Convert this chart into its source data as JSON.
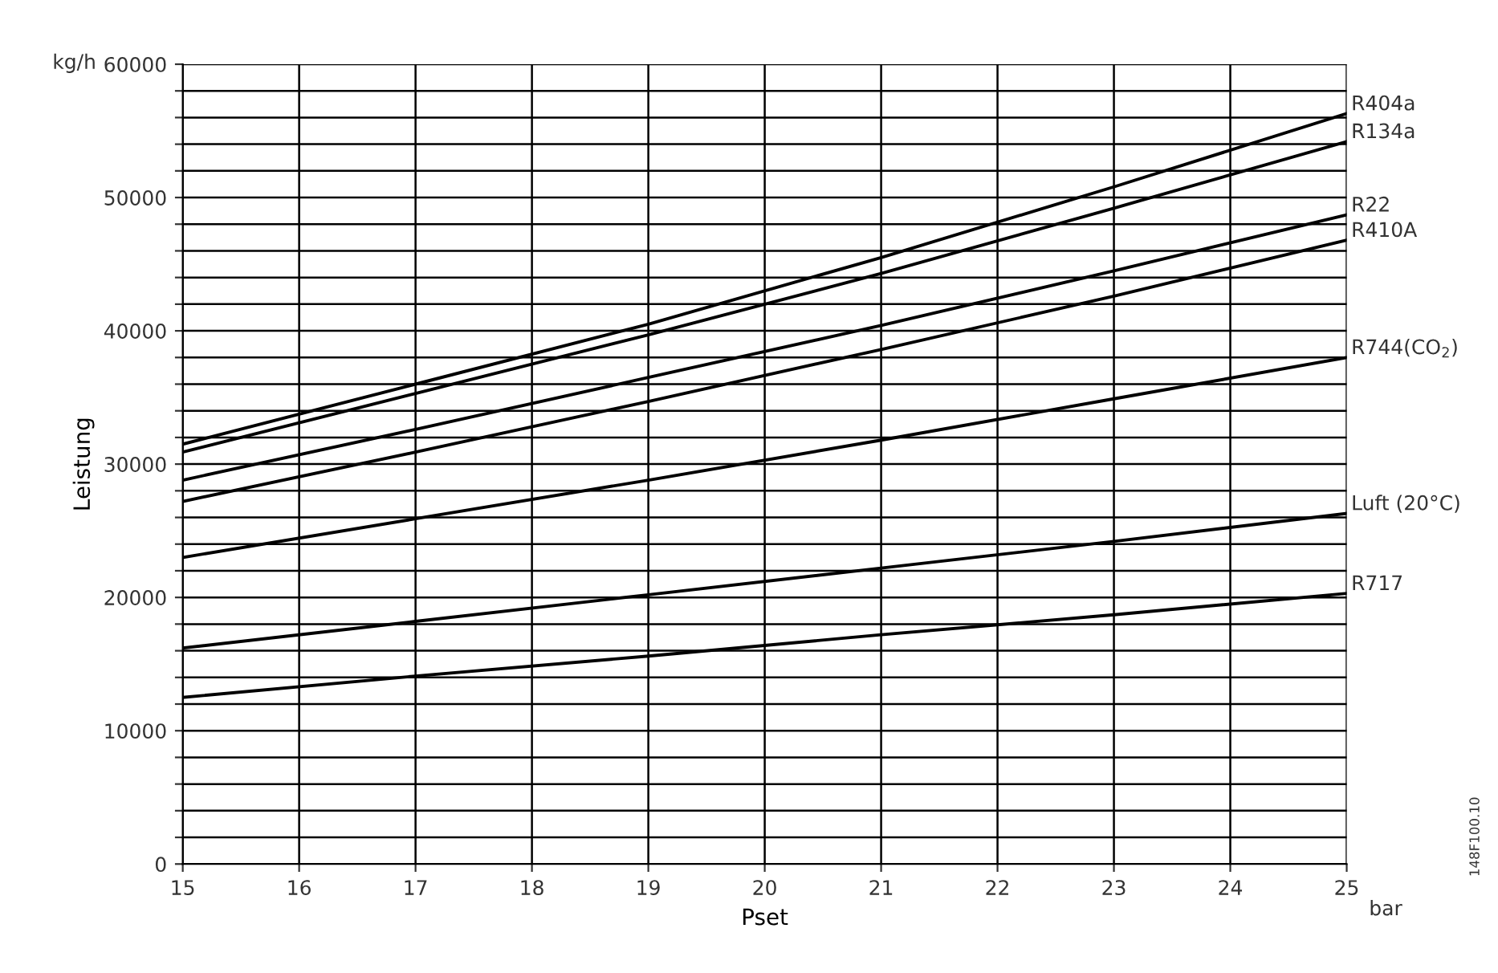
{
  "chart_data": {
    "type": "line",
    "xlabel": "Pset",
    "ylabel": "Leistung",
    "annotations": [
      "kg/h",
      "bar",
      "148F100.10"
    ],
    "x": [
      15,
      17,
      19,
      21,
      23,
      25
    ],
    "series": [
      {
        "name": "R404a",
        "color": "#000000",
        "values": [
          31500,
          36000,
          40500,
          45500,
          50800,
          56300
        ]
      },
      {
        "name": "R134a",
        "color": "#000000",
        "values": [
          30900,
          35300,
          39700,
          44300,
          49200,
          54200
        ]
      },
      {
        "name": "R22",
        "color": "#000000",
        "values": [
          28800,
          32600,
          36500,
          40400,
          44500,
          48700
        ]
      },
      {
        "name": "R410A",
        "color": "#000000",
        "values": [
          27200,
          30900,
          34700,
          38600,
          42600,
          46800
        ]
      },
      {
        "name": "R744(CO$_{2}$)",
        "color": "#000000",
        "values": [
          23000,
          25900,
          28800,
          31800,
          34900,
          38000
        ]
      },
      {
        "name": "Luft (20°C)",
        "color": "#000000",
        "values": [
          16200,
          18200,
          20200,
          22200,
          24200,
          26300
        ]
      },
      {
        "name": "R717",
        "color": "#000000",
        "values": [
          12500,
          14100,
          15600,
          17200,
          18700,
          20300
        ]
      }
    ],
    "xlim": [
      15,
      25
    ],
    "xticks": [
      15,
      16,
      17,
      18,
      19,
      20,
      21,
      22,
      23,
      24,
      25
    ],
    "ylim": [
      0,
      60000
    ],
    "yticks": [
      0,
      {
        "value": 2000,
        "label": null
      },
      {
        "value": 4000,
        "label": null
      },
      {
        "value": 6000,
        "label": null
      },
      {
        "value": 8000,
        "label": null
      },
      10000,
      {
        "value": 12000,
        "label": null
      },
      {
        "value": 14000,
        "label": null
      },
      {
        "value": 16000,
        "label": null
      },
      {
        "value": 18000,
        "label": null
      },
      20000,
      {
        "value": 22000,
        "label": null
      },
      {
        "value": 24000,
        "label": null
      },
      {
        "value": 26000,
        "label": null
      },
      {
        "value": 28000,
        "label": null
      },
      30000,
      {
        "value": 32000,
        "label": null
      },
      {
        "value": 34000,
        "label": null
      },
      {
        "value": 36000,
        "label": null
      },
      {
        "value": 38000,
        "label": null
      },
      40000,
      {
        "value": 42000,
        "label": null
      },
      {
        "value": 44000,
        "label": null
      },
      {
        "value": 46000,
        "label": null
      },
      {
        "value": 48000,
        "label": null
      },
      50000,
      {
        "value": 52000,
        "label": null
      },
      {
        "value": 54000,
        "label": null
      },
      {
        "value": 56000,
        "label": null
      },
      {
        "value": 58000,
        "label": null
      },
      60000
    ],
    "grid": true,
    "legend": false,
    "marker": "none",
    "line_style": "solid"
  }
}
